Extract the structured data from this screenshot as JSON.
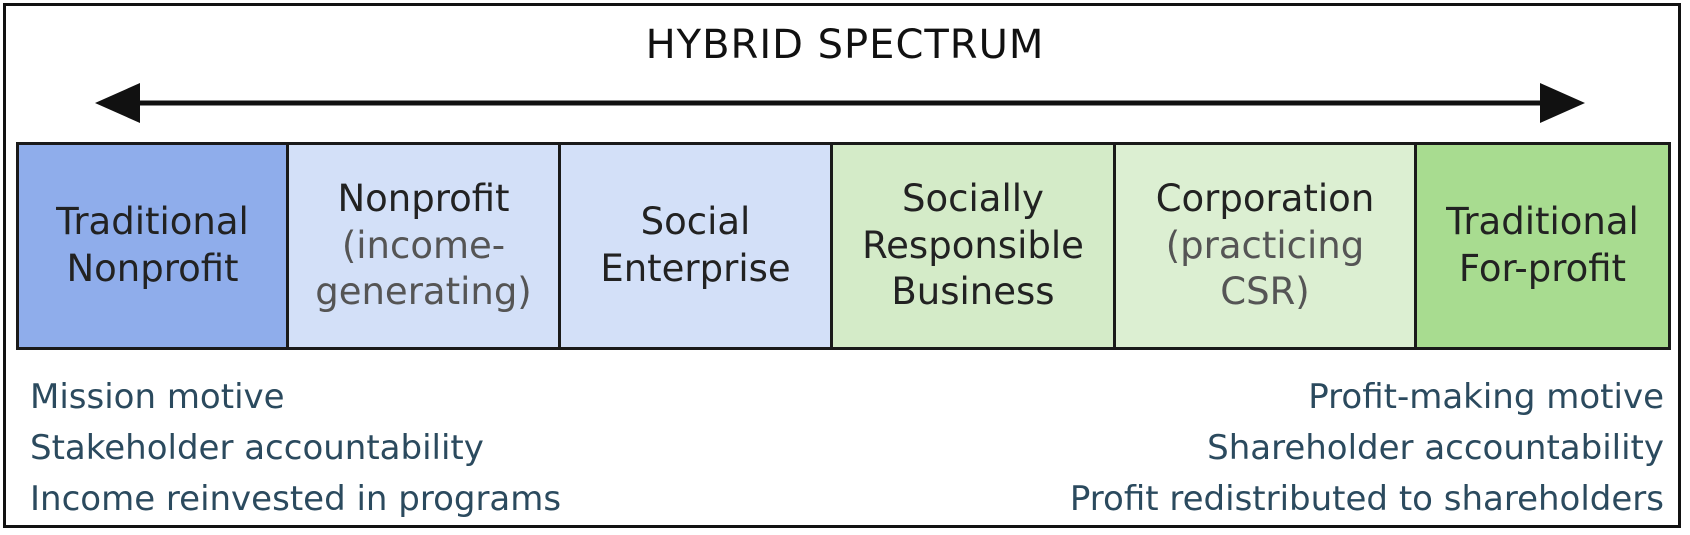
{
  "title": "HYBRID SPECTRUM",
  "categories": [
    {
      "main": "Traditional\nNonprofit",
      "sub": "",
      "color": "#8fadeb"
    },
    {
      "main": "Nonprofit",
      "sub": "(income-\ngenerating)",
      "color": "#d3e0f8"
    },
    {
      "main": "Social\nEnterprise",
      "sub": "",
      "color": "#d3e0f8"
    },
    {
      "main": "Socially\nResponsible\nBusiness",
      "sub": "",
      "color": "#d4ebc8"
    },
    {
      "main": "Corporation",
      "sub": "(practicing\nCSR)",
      "color": "#dcefd2"
    },
    {
      "main": "Traditional\nFor-profit",
      "sub": "",
      "color": "#a8dc90"
    }
  ],
  "left_notes": [
    "Mission motive",
    "Stakeholder accountability",
    "Income reinvested in programs"
  ],
  "right_notes": [
    "Profit-making motive",
    "Shareholder accountability",
    "Profit redistributed to shareholders"
  ]
}
